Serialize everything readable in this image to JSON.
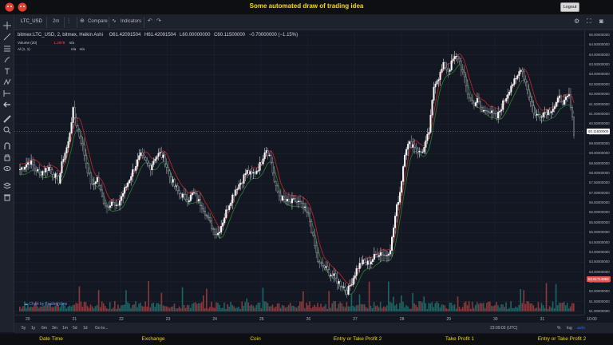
{
  "header": {
    "title": "Some automated draw of trading idea",
    "logout_label": "Logout",
    "logo_color": "#e63e2f"
  },
  "toolbar": {
    "symbol": "LTC_USD",
    "interval": "2m",
    "compare_label": "Compare",
    "indicators_label": "Indicators"
  },
  "legend": {
    "series": "bitmex:LTC_USD, 2, bitmex, Heikin Ashi",
    "open": "O61.42091504",
    "high": "H61.42091504",
    "low": "L60.00000000",
    "close": "C60.11500000",
    "change": "−0.70000000 (−1.15%)",
    "volume_label": "Volume (20)",
    "volume_value": "1.2978",
    "volume_na": "n/a",
    "al_label": "Al (1, 1)",
    "al_na1": "n/a",
    "al_na2": "n/a"
  },
  "price_axis": {
    "labels": [
      "65.00000000",
      "64.50000000",
      "64.00000000",
      "63.50000000",
      "63.00000000",
      "62.50000000",
      "62.00000000",
      "61.50000000",
      "61.00000000",
      "60.50000000",
      "60.00000000",
      "59.50000000",
      "59.00000000",
      "58.50000000",
      "58.00000000",
      "57.50000000",
      "57.00000000",
      "56.50000000",
      "56.00000000",
      "55.50000000",
      "55.00000000",
      "54.50000000",
      "54.00000000",
      "53.50000000",
      "53.00000000",
      "52.50000000",
      "52.00000000",
      "51.50000000",
      "51.00000000"
    ],
    "current_price": "60.11500000",
    "volume_tag": "52.61714955"
  },
  "time_axis": {
    "labels": [
      "20",
      "21",
      "22",
      "23",
      "24",
      "25",
      "26",
      "27",
      "28",
      "29",
      "30",
      "31",
      "10:00"
    ]
  },
  "bottom_bar": {
    "ranges": [
      "5y",
      "1y",
      "6m",
      "3m",
      "1m",
      "5d",
      "1d",
      "Go to..."
    ],
    "clock": "23:09:03 (UTC)",
    "percent": "%",
    "log": "log",
    "auto": "auto"
  },
  "watermark": "Chart by TradingView",
  "footer": {
    "columns": [
      "Date Time",
      "Exchange",
      "Coin",
      "Entry or Take Profit 2",
      "Take Profit 1",
      "Entry or Take Profit 2"
    ]
  },
  "chart_data": {
    "type": "candlestick",
    "style": "Heikin Ashi",
    "symbol": "LTC_USD",
    "exchange": "bitmex",
    "ylim": [
      51.0,
      65.0
    ],
    "day_labels": [
      "20",
      "21",
      "22",
      "23",
      "24",
      "25",
      "26",
      "27",
      "28",
      "29",
      "30",
      "31",
      "10:00"
    ],
    "close_path": [
      [
        0,
        58.2
      ],
      [
        2,
        58.6
      ],
      [
        4,
        58.0
      ],
      [
        6,
        58.3
      ],
      [
        8,
        57.6
      ],
      [
        9,
        58.8
      ],
      [
        10,
        59.5
      ],
      [
        11,
        61.2
      ],
      [
        12,
        60.2
      ],
      [
        13,
        59.4
      ],
      [
        14,
        58.2
      ],
      [
        15,
        57.3
      ],
      [
        16,
        57.8
      ],
      [
        17,
        56.8
      ],
      [
        18,
        56.3
      ],
      [
        19,
        56.6
      ],
      [
        20,
        56.2
      ],
      [
        21,
        56.8
      ],
      [
        22,
        57.3
      ],
      [
        23,
        57.9
      ],
      [
        24,
        58.4
      ],
      [
        25,
        58.9
      ],
      [
        26,
        58.6
      ],
      [
        27,
        58.3
      ],
      [
        28,
        58.8
      ],
      [
        29,
        59.0
      ],
      [
        30,
        58.7
      ],
      [
        31,
        57.9
      ],
      [
        32,
        57.4
      ],
      [
        33,
        57.0
      ],
      [
        34,
        56.8
      ],
      [
        35,
        56.7
      ],
      [
        36,
        57.0
      ],
      [
        37,
        56.6
      ],
      [
        38,
        56.3
      ],
      [
        39,
        55.7
      ],
      [
        40,
        55.2
      ],
      [
        41,
        54.9
      ],
      [
        42,
        55.5
      ],
      [
        43,
        56.2
      ],
      [
        44,
        56.8
      ],
      [
        45,
        57.3
      ],
      [
        46,
        57.6
      ],
      [
        47,
        58.1
      ],
      [
        48,
        57.9
      ],
      [
        49,
        58.1
      ],
      [
        50,
        58.5
      ],
      [
        51,
        59.3
      ],
      [
        52,
        58.8
      ],
      [
        53,
        57.3
      ],
      [
        54,
        56.8
      ],
      [
        55,
        56.6
      ],
      [
        56,
        56.5
      ],
      [
        57,
        56.6
      ],
      [
        58,
        56.5
      ],
      [
        59,
        56.2
      ],
      [
        60,
        55.8
      ],
      [
        61,
        54.5
      ],
      [
        62,
        53.4
      ],
      [
        63,
        53.3
      ],
      [
        64,
        53.0
      ],
      [
        65,
        52.8
      ],
      [
        66,
        52.5
      ],
      [
        67,
        52.3
      ],
      [
        68,
        52.0
      ],
      [
        69,
        52.6
      ],
      [
        70,
        53.2
      ],
      [
        71,
        53.5
      ],
      [
        72,
        53.4
      ],
      [
        73,
        53.6
      ],
      [
        74,
        53.9
      ],
      [
        75,
        54.0
      ],
      [
        76,
        53.8
      ],
      [
        77,
        54.3
      ],
      [
        78,
        56.0
      ],
      [
        79,
        57.2
      ],
      [
        80,
        59.3
      ],
      [
        81,
        59.5
      ],
      [
        82,
        59.4
      ],
      [
        83,
        59.0
      ],
      [
        84,
        59.3
      ],
      [
        85,
        60.2
      ],
      [
        86,
        62.6
      ],
      [
        87,
        62.9
      ],
      [
        88,
        63.5
      ],
      [
        89,
        63.2
      ],
      [
        90,
        63.8
      ],
      [
        91,
        63.9
      ],
      [
        92,
        63.0
      ],
      [
        93,
        62.0
      ],
      [
        94,
        61.5
      ],
      [
        95,
        61.7
      ],
      [
        96,
        61.1
      ],
      [
        97,
        61.3
      ],
      [
        98,
        61.0
      ],
      [
        99,
        60.8
      ],
      [
        100,
        61.4
      ],
      [
        101,
        61.9
      ],
      [
        102,
        62.5
      ],
      [
        103,
        62.7
      ],
      [
        104,
        63.4
      ],
      [
        105,
        62.6
      ],
      [
        106,
        61.6
      ],
      [
        107,
        60.9
      ],
      [
        108,
        61.0
      ],
      [
        109,
        61.1
      ],
      [
        110,
        61.2
      ],
      [
        111,
        61.4
      ],
      [
        112,
        61.8
      ],
      [
        113,
        61.6
      ],
      [
        114,
        61.9
      ],
      [
        115,
        60.1
      ]
    ]
  }
}
